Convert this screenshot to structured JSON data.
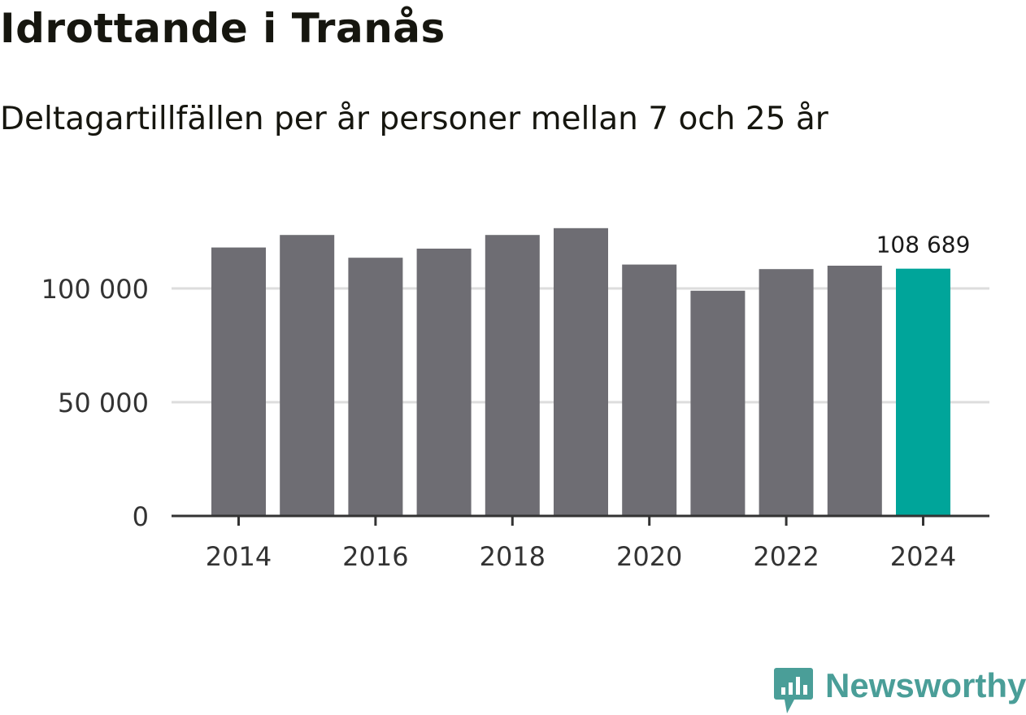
{
  "header": {
    "title": "Idrottande i Tranås",
    "subtitle": "Deltagartillfällen per år personer mellan 7 och 25 år"
  },
  "brand": {
    "name": "Newsworthy",
    "icon": "newsworthy-logo-icon",
    "color": "#4a9e98"
  },
  "colors": {
    "bar": "#6e6d73",
    "highlight": "#00a59a",
    "grid": "#dddddd",
    "axis": "#333333",
    "text": "#333333"
  },
  "chart_data": {
    "type": "bar",
    "title": "Idrottande i Tranås",
    "subtitle": "Deltagartillfällen per år personer mellan 7 och 25 år",
    "xlabel": "",
    "ylabel": "",
    "categories": [
      2014,
      2015,
      2016,
      2017,
      2018,
      2019,
      2020,
      2021,
      2022,
      2023,
      2024
    ],
    "values": [
      118000,
      123500,
      113500,
      117500,
      123500,
      126500,
      110500,
      99000,
      108500,
      110000,
      108689
    ],
    "ylim": [
      0,
      130000
    ],
    "yticks": [
      0,
      50000,
      100000
    ],
    "ytick_labels": [
      "0",
      "50 000",
      "100 000"
    ],
    "xticks": [
      2014,
      2016,
      2018,
      2020,
      2022,
      2024
    ],
    "xtick_labels": [
      "2014",
      "2016",
      "2018",
      "2020",
      "2022",
      "2024"
    ],
    "highlight_index": 10,
    "data_label": "108 689",
    "grid": true,
    "legend": "none"
  }
}
